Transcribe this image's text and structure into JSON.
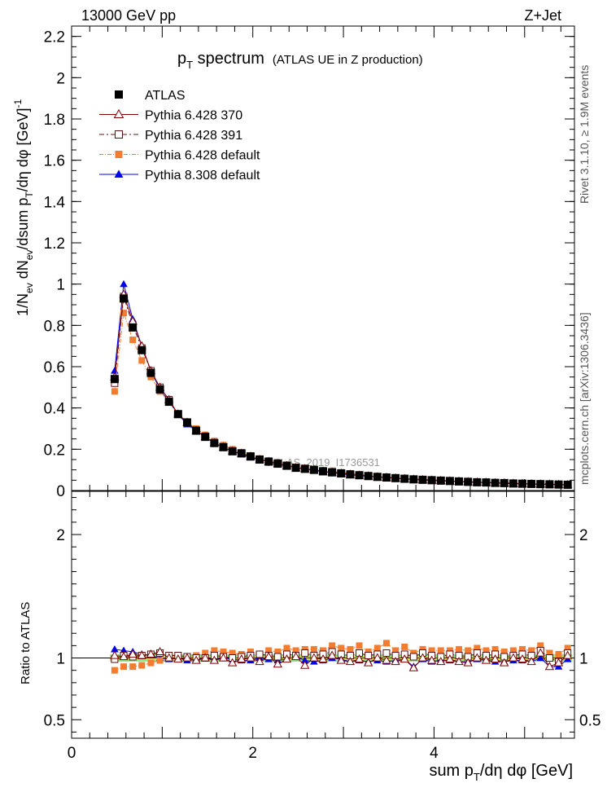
{
  "header": {
    "left": "13000 GeV pp",
    "right": "Z+Jet"
  },
  "side_labels": {
    "top": "Rivet 3.1.10, ≥ 1.9M events",
    "bottom": "mcplots.cern.ch [arXiv:1306.3436]"
  },
  "watermark": "ATLAS_2019_I1736531",
  "colors": {
    "atlas": "#000000",
    "p370": "#800000",
    "p391": "#5a1010",
    "p6def": "#f47c30",
    "p8def": "#0000ee",
    "band_inner": "#ffff66",
    "band_outer": "#88ee88"
  },
  "chart_data": [
    {
      "type": "scatter",
      "panel": "main",
      "title": "p_T spectrum (ATLAS UE in Z production)",
      "title_main": "p",
      "title_sub": "T",
      "title_rest": " spectrum",
      "title_note": "(ATLAS UE in Z production)",
      "ylabel": "1/N_ev dN_ev/dsum p_T/dη dφ [GeV]^-1",
      "ylabel_parts": {
        "a": "1/N",
        "b": "ev",
        "c": " dN",
        "d": "ev",
        "e": "/dsum p",
        "f": "T",
        "g": "/dη dφ  [GeV]",
        "h": "-1"
      },
      "xlim": [
        0,
        5.55
      ],
      "ylim": [
        0,
        2.25
      ],
      "yticks": [
        "0",
        "0.2",
        "0.4",
        "0.6",
        "0.8",
        "1",
        "1.2",
        "1.4",
        "1.6",
        "1.8",
        "2",
        "2.2"
      ],
      "legend": [
        "ATLAS",
        "Pythia 6.428 370",
        "Pythia 6.428 391",
        "Pythia 6.428 default",
        "Pythia 8.308 default"
      ],
      "x": [
        0.475,
        0.575,
        0.675,
        0.775,
        0.875,
        0.975,
        1.075,
        1.175,
        1.275,
        1.375,
        1.475,
        1.575,
        1.675,
        1.775,
        1.875,
        1.975,
        2.075,
        2.175,
        2.275,
        2.375,
        2.475,
        2.575,
        2.675,
        2.775,
        2.875,
        2.975,
        3.075,
        3.175,
        3.275,
        3.375,
        3.475,
        3.575,
        3.675,
        3.775,
        3.875,
        3.975,
        4.075,
        4.175,
        4.275,
        4.375,
        4.475,
        4.575,
        4.675,
        4.775,
        4.875,
        4.975,
        5.075,
        5.175,
        5.275,
        5.375,
        5.475
      ],
      "series": [
        {
          "name": "ATLAS",
          "values": [
            0.54,
            0.93,
            0.79,
            0.68,
            0.57,
            0.49,
            0.43,
            0.37,
            0.33,
            0.29,
            0.26,
            0.23,
            0.21,
            0.19,
            0.18,
            0.165,
            0.15,
            0.14,
            0.13,
            0.12,
            0.11,
            0.105,
            0.1,
            0.093,
            0.088,
            0.083,
            0.078,
            0.074,
            0.07,
            0.066,
            0.063,
            0.06,
            0.057,
            0.054,
            0.052,
            0.05,
            0.048,
            0.046,
            0.044,
            0.042,
            0.04,
            0.039,
            0.037,
            0.036,
            0.034,
            0.033,
            0.032,
            0.031,
            0.03,
            0.029,
            0.028
          ]
        },
        {
          "name": "Pythia 6.428 370",
          "values": [
            0.55,
            0.95,
            0.82,
            0.7,
            0.58,
            0.5,
            0.44,
            0.37,
            0.33,
            0.29,
            0.26,
            0.23,
            0.21,
            0.19,
            0.18,
            0.165,
            0.15,
            0.14,
            0.13,
            0.12,
            0.11,
            0.105,
            0.1,
            0.093,
            0.088,
            0.083,
            0.078,
            0.074,
            0.07,
            0.066,
            0.063,
            0.06,
            0.057,
            0.054,
            0.052,
            0.05,
            0.048,
            0.046,
            0.044,
            0.042,
            0.04,
            0.039,
            0.037,
            0.036,
            0.034,
            0.033,
            0.032,
            0.031,
            0.03,
            0.029,
            0.028
          ]
        },
        {
          "name": "Pythia 6.428 391",
          "values": [
            0.52,
            0.94,
            0.8,
            0.69,
            0.58,
            0.5,
            0.44,
            0.37,
            0.33,
            0.29,
            0.26,
            0.23,
            0.21,
            0.19,
            0.18,
            0.166,
            0.152,
            0.14,
            0.13,
            0.12,
            0.11,
            0.105,
            0.1,
            0.094,
            0.089,
            0.084,
            0.079,
            0.075,
            0.07,
            0.066,
            0.063,
            0.06,
            0.057,
            0.054,
            0.052,
            0.05,
            0.048,
            0.046,
            0.044,
            0.042,
            0.04,
            0.039,
            0.037,
            0.036,
            0.034,
            0.033,
            0.032,
            0.031,
            0.03,
            0.029,
            0.028
          ]
        },
        {
          "name": "Pythia 6.428 default",
          "values": [
            0.48,
            0.86,
            0.73,
            0.63,
            0.55,
            0.48,
            0.43,
            0.37,
            0.33,
            0.3,
            0.27,
            0.24,
            0.22,
            0.2,
            0.185,
            0.17,
            0.155,
            0.145,
            0.135,
            0.125,
            0.115,
            0.11,
            0.105,
            0.098,
            0.093,
            0.088,
            0.083,
            0.078,
            0.074,
            0.07,
            0.067,
            0.063,
            0.06,
            0.057,
            0.055,
            0.052,
            0.05,
            0.048,
            0.046,
            0.044,
            0.042,
            0.041,
            0.039,
            0.038,
            0.036,
            0.035,
            0.034,
            0.033,
            0.032,
            0.031,
            0.03
          ]
        },
        {
          "name": "Pythia 8.308 default",
          "values": [
            0.58,
            1.0,
            0.83,
            0.7,
            0.58,
            0.49,
            0.43,
            0.37,
            0.32,
            0.29,
            0.26,
            0.23,
            0.21,
            0.19,
            0.175,
            0.16,
            0.15,
            0.14,
            0.13,
            0.12,
            0.11,
            0.103,
            0.097,
            0.091,
            0.086,
            0.081,
            0.076,
            0.072,
            0.068,
            0.065,
            0.062,
            0.059,
            0.056,
            0.053,
            0.051,
            0.049,
            0.047,
            0.045,
            0.043,
            0.041,
            0.039,
            0.038,
            0.036,
            0.035,
            0.033,
            0.032,
            0.031,
            0.03,
            0.029,
            0.028,
            0.027
          ]
        }
      ]
    },
    {
      "type": "scatter",
      "panel": "ratio",
      "ylabel": "Ratio to ATLAS",
      "xlabel": "sum p_T/dη dφ [GeV]",
      "xlabel_parts": {
        "a": "sum p",
        "b": "T",
        "c": "/dη dφ [GeV]"
      },
      "xlim": [
        0,
        5.55
      ],
      "ylim": [
        0.35,
        2.35
      ],
      "xticks": [
        "0",
        "2",
        "4"
      ],
      "yticks": [
        "0.5",
        "1",
        "2"
      ],
      "x": [
        0.475,
        0.575,
        0.675,
        0.775,
        0.875,
        0.975,
        1.075,
        1.175,
        1.275,
        1.375,
        1.475,
        1.575,
        1.675,
        1.775,
        1.875,
        1.975,
        2.075,
        2.175,
        2.275,
        2.375,
        2.475,
        2.575,
        2.675,
        2.775,
        2.875,
        2.975,
        3.075,
        3.175,
        3.275,
        3.375,
        3.475,
        3.575,
        3.675,
        3.775,
        3.875,
        3.975,
        4.075,
        4.175,
        4.275,
        4.375,
        4.475,
        4.575,
        4.675,
        4.775,
        4.875,
        4.975,
        5.075,
        5.175,
        5.275,
        5.375,
        5.475
      ],
      "series": [
        {
          "name": "Pythia 6.428 370",
          "values": [
            1.02,
            1.01,
            1.03,
            1.02,
            1.03,
            1.05,
            1.0,
            0.99,
            1.0,
            0.98,
            1.0,
            0.98,
            1.0,
            0.96,
            0.99,
            1.0,
            0.97,
            1.01,
            0.95,
            0.99,
            1.01,
            0.94,
            1.0,
            0.99,
            1.02,
            0.98,
            0.97,
            0.99,
            0.96,
            1.0,
            0.98,
            0.97,
            0.99,
            0.92,
            1.0,
            0.98,
            0.97,
            0.99,
            0.97,
            0.96,
            1.0,
            0.98,
            0.99,
            0.96,
            1.0,
            0.99,
            0.97,
            1.04,
            0.93,
            0.96,
            1.02
          ]
        },
        {
          "name": "Pythia 6.428 391",
          "values": [
            0.99,
            1.02,
            1.01,
            1.02,
            1.03,
            1.04,
            1.02,
            1.02,
            1.01,
            1.0,
            1.0,
            1.02,
            1.01,
            1.0,
            1.01,
            1.02,
            1.03,
            1.02,
            1.01,
            1.03,
            1.02,
            1.04,
            1.02,
            1.03,
            1.05,
            1.03,
            1.02,
            1.04,
            1.02,
            1.03,
            1.04,
            1.02,
            1.03,
            1.01,
            1.04,
            1.02,
            1.01,
            1.03,
            1.02,
            1.01,
            1.04,
            1.02,
            1.03,
            1.01,
            1.02,
            1.03,
            1.02,
            1.06,
            1.0,
            0.97,
            1.04
          ]
        },
        {
          "name": "Pythia 6.428 default",
          "values": [
            0.9,
            0.93,
            0.93,
            0.94,
            0.96,
            0.98,
            1.0,
            1.01,
            1.01,
            1.02,
            1.04,
            1.06,
            1.05,
            1.04,
            1.03,
            1.05,
            1.03,
            1.06,
            1.05,
            1.08,
            1.06,
            1.07,
            1.07,
            1.06,
            1.1,
            1.08,
            1.07,
            1.1,
            1.05,
            1.08,
            1.12,
            1.06,
            1.09,
            1.04,
            1.07,
            1.06,
            1.06,
            1.06,
            1.07,
            1.06,
            1.08,
            1.06,
            1.07,
            1.05,
            1.06,
            1.07,
            1.06,
            1.1,
            1.04,
            1.03,
            1.08
          ]
        },
        {
          "name": "Pythia 8.308 default",
          "values": [
            1.07,
            1.06,
            1.05,
            1.03,
            1.02,
            1.0,
            0.99,
            1.0,
            0.98,
            0.99,
            1.0,
            0.99,
            1.0,
            0.99,
            0.98,
            0.98,
            1.0,
            0.99,
            0.98,
            0.99,
            1.01,
            0.98,
            0.97,
            0.98,
            1.0,
            0.99,
            0.97,
            0.98,
            0.97,
            0.98,
            0.97,
            0.98,
            0.99,
            0.93,
            0.99,
            0.97,
            0.98,
            0.98,
            0.97,
            0.97,
            0.99,
            0.98,
            0.97,
            0.97,
            0.98,
            0.98,
            0.97,
            1.0,
            0.93,
            0.93,
            0.99
          ]
        }
      ],
      "band_x": [
        0.425,
        5.525
      ],
      "band_inner": [
        0.99,
        1.01
      ],
      "band_outer": [
        0.97,
        1.03
      ]
    }
  ]
}
